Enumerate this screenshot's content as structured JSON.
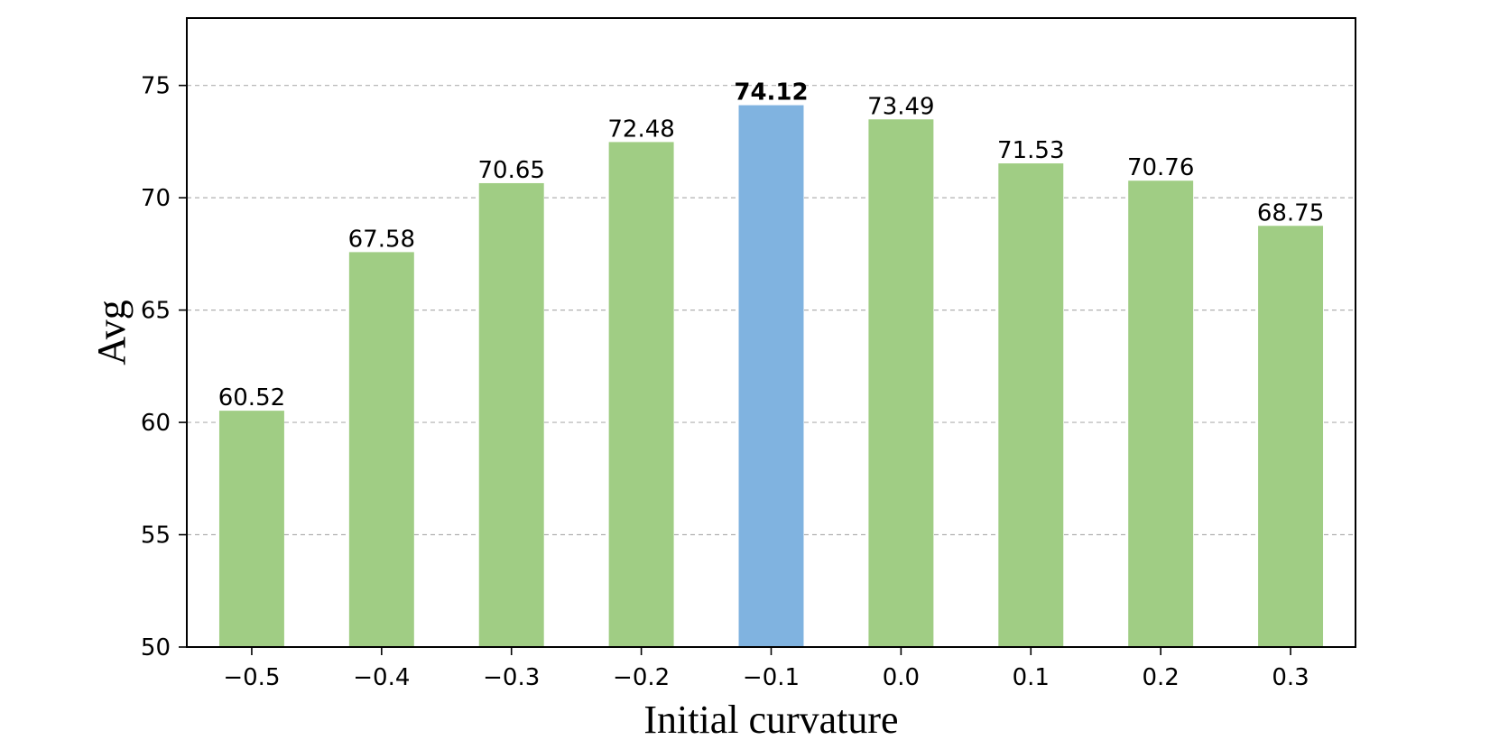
{
  "chart_data": {
    "type": "bar",
    "title": "",
    "xlabel": "Initial curvature",
    "ylabel": "Avg",
    "categories": [
      "−0.5",
      "−0.4",
      "−0.3",
      "−0.2",
      "−0.1",
      "0.0",
      "0.1",
      "0.2",
      "0.3"
    ],
    "values": [
      60.52,
      67.58,
      70.65,
      72.48,
      74.12,
      73.49,
      71.53,
      70.76,
      68.75
    ],
    "value_labels": [
      "60.52",
      "67.58",
      "70.65",
      "72.48",
      "74.12",
      "73.49",
      "71.53",
      "70.76",
      "68.75"
    ],
    "highlight_index": 4,
    "ylim": [
      50,
      78
    ],
    "yticks": [
      50,
      55,
      60,
      65,
      70,
      75
    ],
    "ytick_labels": [
      "50",
      "55",
      "60",
      "65",
      "70",
      "75"
    ],
    "grid": "y-dashed",
    "legend": "none",
    "colors": {
      "bar": "#a0cd84",
      "highlight": "#80b3e0"
    }
  }
}
